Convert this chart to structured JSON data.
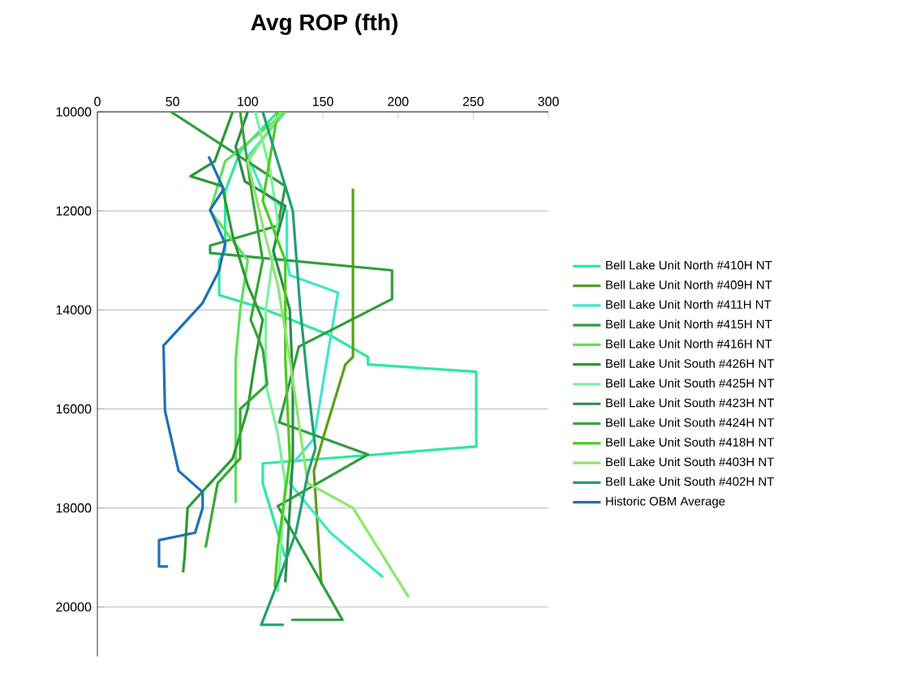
{
  "chart_data": {
    "type": "line",
    "title": "Avg ROP (fth)",
    "xlim": [
      0,
      300
    ],
    "xticks": [
      0,
      50,
      100,
      150,
      200,
      250,
      300
    ],
    "ylim": [
      21000,
      10000
    ],
    "yticks": [
      10000,
      12000,
      14000,
      16000,
      18000,
      20000
    ],
    "grid": "y",
    "legend": "right",
    "line_style": "solid",
    "marker": "none",
    "series": [
      {
        "name": "Bell Lake Unit North #410H NT",
        "color": "#2ee8a0",
        "x": [
          120,
          95,
          85,
          85,
          81,
          81,
          108,
          154,
          180,
          180,
          252,
          252,
          110,
          110,
          125
        ],
        "values": [
          10000,
          10800,
          11600,
          12800,
          13000,
          13700,
          13950,
          14500,
          14950,
          15100,
          15250,
          16760,
          17100,
          17500,
          19000
        ]
      },
      {
        "name": "Bell Lake Unit North #409H NT",
        "color": "#5a9e1a",
        "x": [
          170,
          170,
          165,
          150,
          144,
          149
        ],
        "values": [
          11550,
          14950,
          15100,
          16600,
          17250,
          19550
        ]
      },
      {
        "name": "Bell Lake Unit North #411H NT",
        "color": "#3de8c8",
        "x": [
          125,
          100,
          110,
          126,
          126,
          128,
          160,
          150,
          144,
          130,
          128,
          155,
          190
        ],
        "values": [
          10000,
          10900,
          11600,
          12000,
          13000,
          13300,
          13650,
          15500,
          16600,
          17100,
          17500,
          18500,
          19400
        ]
      },
      {
        "name": "Bell Lake Unit North #415H NT",
        "color": "#2e9e3e",
        "x": [
          49,
          125,
          120,
          75,
          75,
          196,
          196,
          134,
          121,
          180,
          120,
          163,
          129
        ],
        "values": [
          10000,
          11500,
          12300,
          12700,
          12850,
          13200,
          13780,
          14740,
          16270,
          16920,
          17960,
          20260,
          20260
        ]
      },
      {
        "name": "Bell Lake Unit North #416H NT",
        "color": "#5fe05a",
        "x": [
          125,
          85,
          75,
          100,
          95,
          92,
          92,
          92,
          92
        ],
        "values": [
          10000,
          11000,
          12000,
          13000,
          14000,
          15000,
          16000,
          17000,
          17900
        ]
      },
      {
        "name": "Bell Lake Unit South #426H NT",
        "color": "#2a9a30",
        "x": [
          90,
          78,
          62,
          83,
          90,
          100,
          110,
          105,
          100,
          90,
          60,
          58,
          57
        ],
        "values": [
          10000,
          11000,
          11300,
          11500,
          12500,
          13500,
          14200,
          15000,
          16000,
          17000,
          18000,
          19000,
          19300
        ]
      },
      {
        "name": "Bell Lake Unit South #425H NT",
        "color": "#7af0a0",
        "x": [
          105,
          115,
          120,
          112,
          112,
          120,
          125,
          120
        ],
        "values": [
          10000,
          11200,
          12200,
          14000,
          15500,
          16500,
          17500,
          19700
        ]
      },
      {
        "name": "Bell Lake Unit South #423H NT",
        "color": "#2e8b4a",
        "x": [
          100,
          92,
          98,
          125,
          117,
          128,
          130,
          130,
          127,
          125
        ],
        "values": [
          10000,
          10700,
          11400,
          11900,
          12800,
          14000,
          15500,
          17000,
          18500,
          19500
        ]
      },
      {
        "name": "Bell Lake Unit South #424H NT",
        "color": "#3aa53a",
        "x": [
          95,
          102,
          110,
          102,
          110,
          113,
          95,
          95,
          80,
          72
        ],
        "values": [
          10000,
          11500,
          13000,
          14200,
          14800,
          15500,
          16000,
          17000,
          17500,
          18800
        ]
      },
      {
        "name": "Bell Lake Unit South #418H NT",
        "color": "#4ccc1c",
        "x": [
          120,
          110,
          125,
          125,
          128,
          120,
          118
        ],
        "values": [
          10000,
          11800,
          13000,
          15000,
          17000,
          18800,
          19600
        ]
      },
      {
        "name": "Bell Lake Unit South #403H NT",
        "color": "#8ae86a",
        "x": [
          122,
          100,
          110,
          120,
          128,
          135,
          140,
          170,
          207
        ],
        "values": [
          10000,
          11000,
          12300,
          13500,
          15000,
          16500,
          17500,
          18000,
          19800
        ]
      },
      {
        "name": "Bell Lake Unit South #402H NT",
        "color": "#22a070",
        "x": [
          110,
          130,
          135,
          140,
          145,
          140,
          132,
          120,
          109,
          124
        ],
        "values": [
          10000,
          12000,
          14000,
          15500,
          16800,
          17300,
          18500,
          19500,
          20360,
          20360
        ]
      },
      {
        "name": "Historic OBM Average",
        "color": "#1f6fb8",
        "x": [
          74,
          84,
          75,
          85,
          81,
          70,
          44,
          45,
          54,
          70,
          70,
          65,
          41,
          41,
          47
        ],
        "values": [
          10900,
          11560,
          11980,
          12660,
          13200,
          13860,
          14720,
          16040,
          17250,
          17680,
          18000,
          18500,
          18650,
          19180,
          19180
        ]
      }
    ]
  }
}
